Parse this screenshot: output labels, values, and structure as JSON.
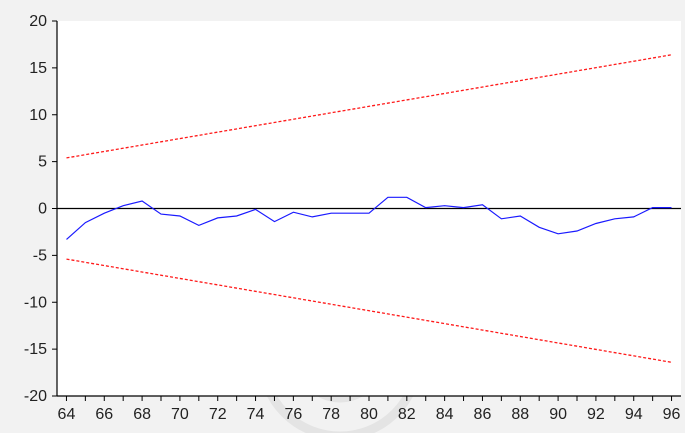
{
  "chart_data": {
    "type": "line",
    "title": "",
    "xlabel": "",
    "ylabel": "",
    "xlim": [
      1963.5,
      1996.5
    ],
    "ylim": [
      -20,
      20
    ],
    "x_ticks": [
      64,
      66,
      68,
      70,
      72,
      74,
      76,
      78,
      80,
      82,
      84,
      86,
      88,
      90,
      92,
      94,
      96
    ],
    "y_ticks": [
      -20,
      -15,
      -10,
      -5,
      0,
      5,
      10,
      15,
      20
    ],
    "grid": false,
    "legend": "none",
    "series": [
      {
        "style": "solid",
        "color": "#1a1aff",
        "x": [
          1964,
          1965,
          1966,
          1967,
          1968,
          1969,
          1970,
          1971,
          1972,
          1973,
          1974,
          1975,
          1976,
          1977,
          1978,
          1979,
          1980,
          1981,
          1982,
          1983,
          1984,
          1985,
          1986,
          1987,
          1988,
          1989,
          1990,
          1991,
          1992,
          1993,
          1994,
          1995,
          1996
        ],
        "y": [
          -3.3,
          -1.5,
          -0.5,
          0.3,
          0.8,
          -0.6,
          -0.8,
          -1.8,
          -1.0,
          -0.8,
          -0.1,
          -1.4,
          -0.4,
          -0.9,
          -0.5,
          -0.5,
          -0.5,
          1.2,
          1.2,
          0.1,
          0.3,
          0.1,
          0.4,
          -1.1,
          -0.8,
          -2.0,
          -2.7,
          -2.4,
          -1.6,
          -1.1,
          -0.9,
          0.1,
          0.1
        ]
      },
      {
        "style": "dashed",
        "color": "#ff1a1a",
        "x": [
          1964,
          1996
        ],
        "y": [
          5.4,
          16.4
        ]
      },
      {
        "style": "dashed",
        "color": "#ff1a1a",
        "x": [
          1964,
          1996
        ],
        "y": [
          -5.4,
          -16.4
        ]
      }
    ],
    "zero_line": {
      "value": 0,
      "color": "#000000"
    },
    "colors": {
      "background": "#f2f2f2",
      "plot_area": "#ffffff",
      "axis": "#000000",
      "text": "#222222"
    }
  }
}
